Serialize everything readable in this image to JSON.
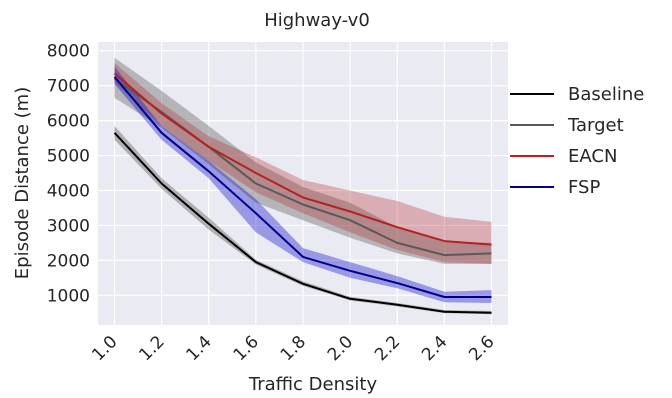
{
  "chart_data": {
    "type": "line",
    "title": "Highway-v0",
    "xlabel": "Traffic Density",
    "ylabel": "Episode Distance (m)",
    "x": [
      1.0,
      1.2,
      1.4,
      1.6,
      1.8,
      2.0,
      2.2,
      2.4,
      2.6
    ],
    "x_tick_labels": [
      "1.0",
      "1.2",
      "1.4",
      "1.6",
      "1.8",
      "2.0",
      "2.2",
      "2.4",
      "2.6"
    ],
    "y_ticks": [
      1000,
      2000,
      3000,
      4000,
      5000,
      6000,
      7000,
      8000
    ],
    "y_tick_labels": [
      "1000",
      "2000",
      "3000",
      "4000",
      "5000",
      "6000",
      "7000",
      "8000"
    ],
    "xlim": [
      0.93,
      2.67
    ],
    "ylim": [
      150,
      8250
    ],
    "grid": true,
    "legend_position": "right",
    "series": [
      {
        "name": "Baseline",
        "color": "#000000",
        "band_color": "#808080",
        "band_opacity": 0.55,
        "values": [
          5650,
          4200,
          3050,
          1950,
          1330,
          900,
          730,
          530,
          500
        ],
        "lower": [
          5450,
          4050,
          2880,
          1880,
          1270,
          850,
          680,
          490,
          460
        ],
        "upper": [
          5850,
          4350,
          3220,
          2020,
          1400,
          960,
          780,
          580,
          550
        ]
      },
      {
        "name": "Target",
        "color": "#595959",
        "band_color": "#808080",
        "band_opacity": 0.5,
        "values": [
          7200,
          6250,
          5250,
          4200,
          3600,
          3150,
          2500,
          2150,
          2200
        ],
        "lower": [
          6650,
          5800,
          4750,
          3650,
          3150,
          2650,
          2200,
          1900,
          1900
        ],
        "upper": [
          7800,
          6850,
          5850,
          4800,
          4100,
          3650,
          2950,
          2550,
          2500
        ]
      },
      {
        "name": "EACN",
        "color": "#b22222",
        "band_color": "#b22222",
        "band_opacity": 0.3,
        "values": [
          7350,
          6200,
          5250,
          4500,
          3800,
          3400,
          2950,
          2550,
          2450
        ],
        "lower": [
          7100,
          5850,
          4850,
          3950,
          3350,
          2800,
          2300,
          1950,
          1900
        ],
        "upper": [
          7650,
          6500,
          5550,
          4950,
          4300,
          4000,
          3700,
          3250,
          3100
        ]
      },
      {
        "name": "FSP",
        "color": "#00008b",
        "band_color": "#0000cd",
        "band_opacity": 0.35,
        "values": [
          7250,
          5650,
          4550,
          3350,
          2100,
          1700,
          1350,
          950,
          950
        ],
        "lower": [
          7050,
          5450,
          4350,
          2800,
          1950,
          1500,
          1200,
          800,
          780
        ],
        "upper": [
          7550,
          5850,
          4850,
          3750,
          2350,
          1950,
          1550,
          1100,
          1150
        ]
      }
    ]
  }
}
